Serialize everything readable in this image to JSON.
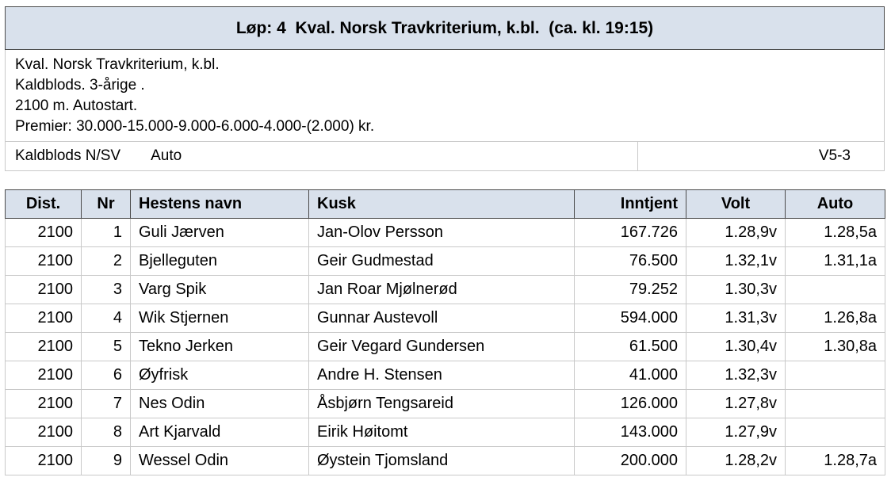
{
  "race": {
    "title": "Løp: 4  Kval. Norsk Travkriterium, k.bl.  (ca. kl. 19:15)",
    "info_lines": [
      "Kval. Norsk Travkriterium, k.bl.",
      "Kaldblods. 3-årige .",
      "2100 m. Autostart.",
      "Premier: 30.000-15.000-9.000-6.000-4.000-(2.000) kr."
    ],
    "category": "Kaldblods N/SV",
    "start_type": "Auto",
    "code": "V5-3"
  },
  "table": {
    "headers": {
      "dist": "Dist.",
      "nr": "Nr",
      "name": "Hestens navn",
      "kusk": "Kusk",
      "inntjent": "Inntjent",
      "volt": "Volt",
      "auto": "Auto"
    },
    "rows": [
      {
        "dist": "2100",
        "nr": "1",
        "name": "Guli Jærven",
        "kusk": "Jan-Olov Persson",
        "inntjent": "167.726",
        "volt": "1.28,9v",
        "auto": "1.28,5a"
      },
      {
        "dist": "2100",
        "nr": "2",
        "name": "Bjelleguten",
        "kusk": "Geir Gudmestad",
        "inntjent": "76.500",
        "volt": "1.32,1v",
        "auto": "1.31,1a"
      },
      {
        "dist": "2100",
        "nr": "3",
        "name": "Varg Spik",
        "kusk": "Jan Roar Mjølnerød",
        "inntjent": "79.252",
        "volt": "1.30,3v",
        "auto": ""
      },
      {
        "dist": "2100",
        "nr": "4",
        "name": "Wik Stjernen",
        "kusk": "Gunnar Austevoll",
        "inntjent": "594.000",
        "volt": "1.31,3v",
        "auto": "1.26,8a"
      },
      {
        "dist": "2100",
        "nr": "5",
        "name": "Tekno Jerken",
        "kusk": "Geir Vegard Gundersen",
        "inntjent": "61.500",
        "volt": "1.30,4v",
        "auto": "1.30,8a"
      },
      {
        "dist": "2100",
        "nr": "6",
        "name": "Øyfrisk",
        "kusk": "Andre H. Stensen",
        "inntjent": "41.000",
        "volt": "1.32,3v",
        "auto": ""
      },
      {
        "dist": "2100",
        "nr": "7",
        "name": "Nes Odin",
        "kusk": "Åsbjørn Tengsareid",
        "inntjent": "126.000",
        "volt": "1.27,8v",
        "auto": ""
      },
      {
        "dist": "2100",
        "nr": "8",
        "name": "Art Kjarvald",
        "kusk": "Eirik Høitomt",
        "inntjent": "143.000",
        "volt": "1.27,9v",
        "auto": ""
      },
      {
        "dist": "2100",
        "nr": "9",
        "name": "Wessel Odin",
        "kusk": "Øystein Tjomsland",
        "inntjent": "200.000",
        "volt": "1.28,2v",
        "auto": "1.28,7a"
      }
    ]
  }
}
